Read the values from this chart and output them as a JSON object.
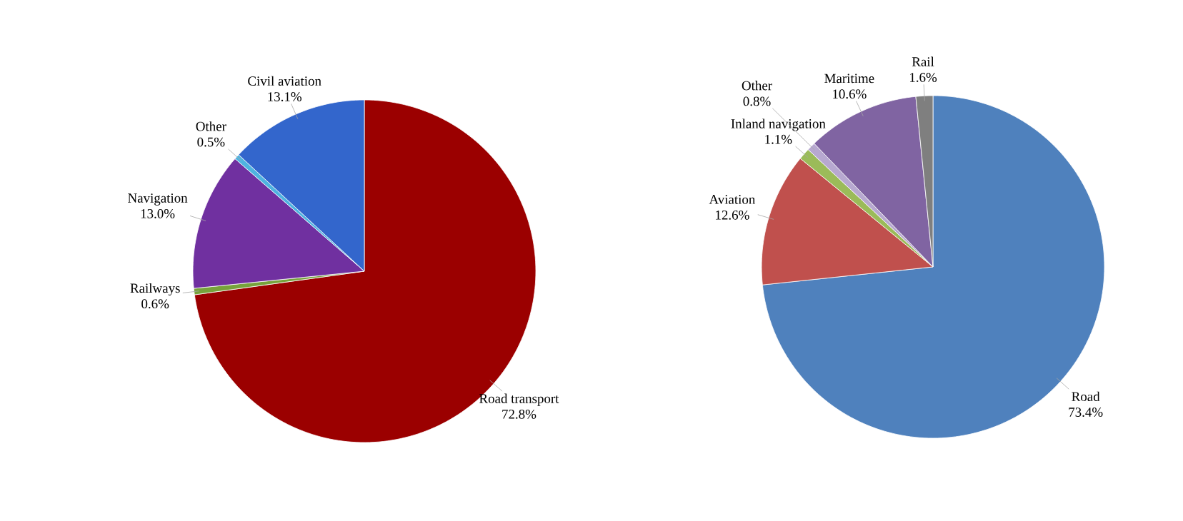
{
  "chart_data": [
    {
      "type": "pie",
      "categories": [
        "Road transport",
        "Railways",
        "Navigation",
        "Other",
        "Civil aviation"
      ],
      "values": [
        72.8,
        0.6,
        13.0,
        0.5,
        13.1
      ],
      "value_labels": [
        "72.8%",
        "0.6%",
        "13.0%",
        "0.5%",
        "13.1%"
      ],
      "colors": [
        "#9b0000",
        "#77a33b",
        "#7030a0",
        "#4fb3e0",
        "#3366cc"
      ]
    },
    {
      "type": "pie",
      "categories": [
        "Road",
        "Aviation",
        "Inland navigation",
        "Other",
        "Maritime",
        "Rail"
      ],
      "values": [
        73.4,
        12.6,
        1.1,
        0.8,
        10.6,
        1.6
      ],
      "value_labels": [
        "73.4%",
        "12.6%",
        "1.1%",
        "0.8%",
        "10.6%",
        "1.6%"
      ],
      "colors": [
        "#4f81bd",
        "#c0504d",
        "#9bbb59",
        "#b7a8d0",
        "#8064a2",
        "#7f7f7f"
      ]
    }
  ]
}
